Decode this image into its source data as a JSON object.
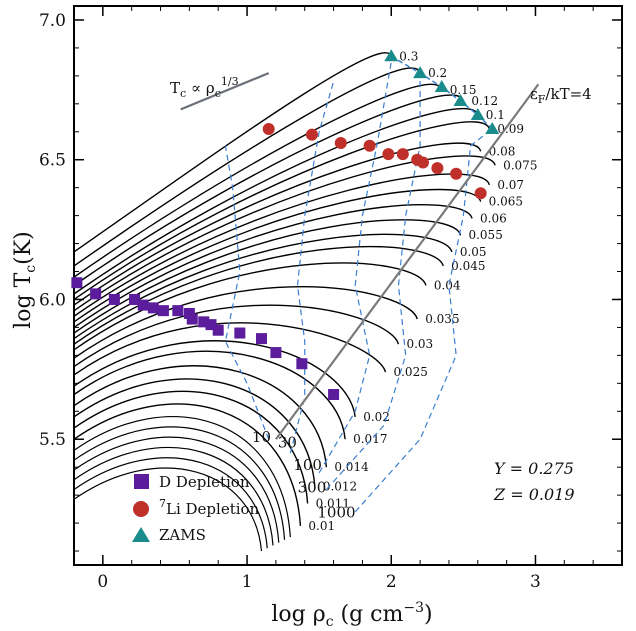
{
  "chart_data": {
    "type": "line",
    "xlabel_main": "log ρ",
    "xlabel_sub": "c",
    "xlabel_units": " (g cm",
    "xlabel_exp": "−3",
    "xlabel_close": ")",
    "ylabel_main": "log T",
    "ylabel_sub": "c",
    "ylabel_units": "(K)",
    "xlim": [
      -0.2,
      3.6
    ],
    "ylim": [
      5.05,
      7.05
    ],
    "xticks": [
      0,
      1,
      2,
      3
    ],
    "xtick_labels": [
      "0",
      "1",
      "2",
      "3"
    ],
    "yticks": [
      5.5,
      6.0,
      6.5,
      7.0
    ],
    "ytick_labels": [
      "5.5",
      "6.0",
      "6.5",
      "7.0"
    ],
    "tracks": [
      {
        "mass": "0.3",
        "rho_end": 2.0,
        "T_end": 6.87,
        "T_start": 6.17
      },
      {
        "mass": "0.2",
        "rho_end": 2.2,
        "T_end": 6.81,
        "T_start": 6.12
      },
      {
        "mass": "0.15",
        "rho_end": 2.35,
        "T_end": 6.75,
        "T_start": 6.08
      },
      {
        "mass": "0.12",
        "rho_end": 2.5,
        "T_end": 6.71,
        "T_start": 6.05
      },
      {
        "mass": "0.1",
        "rho_end": 2.6,
        "T_end": 6.66,
        "T_start": 6.02
      },
      {
        "mass": "0.09",
        "rho_end": 2.68,
        "T_end": 6.61,
        "T_start": 6.0
      },
      {
        "mass": "0.08",
        "rho_end": 2.62,
        "T_end": 6.53,
        "T_start": 5.98
      },
      {
        "mass": "0.075",
        "rho_end": 2.72,
        "T_end": 6.48,
        "T_start": 5.96
      },
      {
        "mass": "0.07",
        "rho_end": 2.68,
        "T_end": 6.41,
        "T_start": 5.94
      },
      {
        "mass": "0.065",
        "rho_end": 2.62,
        "T_end": 6.35,
        "T_start": 5.92
      },
      {
        "mass": "0.06",
        "rho_end": 2.56,
        "T_end": 6.29,
        "T_start": 5.9
      },
      {
        "mass": "0.055",
        "rho_end": 2.48,
        "T_end": 6.23,
        "T_start": 5.88
      },
      {
        "mass": "0.05",
        "rho_end": 2.42,
        "T_end": 6.17,
        "T_start": 5.86
      },
      {
        "mass": "0.045",
        "rho_end": 2.36,
        "T_end": 6.12,
        "T_start": 5.84
      },
      {
        "mass": "0.04",
        "rho_end": 2.24,
        "T_end": 6.05,
        "T_start": 5.82
      },
      {
        "mass": "0.035",
        "rho_end": 2.18,
        "T_end": 5.93,
        "T_start": 5.79
      },
      {
        "mass": "0.03",
        "rho_end": 2.05,
        "T_end": 5.84,
        "T_start": 5.76
      },
      {
        "mass": "0.025",
        "rho_end": 1.96,
        "T_end": 5.74,
        "T_start": 5.73
      },
      {
        "mass": "0.02",
        "rho_end": 1.75,
        "T_end": 5.58,
        "T_start": 5.69
      },
      {
        "mass": "0.017",
        "rho_end": 1.68,
        "T_end": 5.5,
        "T_start": 5.66
      },
      {
        "mass": "0.014",
        "rho_end": 1.55,
        "T_end": 5.4,
        "T_start": 5.62
      },
      {
        "mass": "0.012",
        "rho_end": 1.47,
        "T_end": 5.33,
        "T_start": 5.58
      },
      {
        "mass": "0.011",
        "rho_end": 1.42,
        "T_end": 5.27,
        "T_start": 5.54
      },
      {
        "mass": "0.01",
        "rho_end": 1.37,
        "T_end": 5.19,
        "T_start": 5.5
      }
    ],
    "extra_tracks_count": 6,
    "zams": {
      "name": "ZAMS",
      "x": [
        2.0,
        2.2,
        2.35,
        2.48,
        2.6,
        2.7
      ],
      "y": [
        6.87,
        6.81,
        6.76,
        6.71,
        6.66,
        6.61
      ],
      "color": "#1a8c8c"
    },
    "li_depletion": {
      "name": "Li Depletion",
      "name_sup": "7",
      "x": [
        1.15,
        1.45,
        1.65,
        1.85,
        1.98,
        2.08,
        2.18,
        2.22,
        2.32,
        2.45,
        2.62
      ],
      "y": [
        6.61,
        6.59,
        6.56,
        6.55,
        6.52,
        6.52,
        6.5,
        6.49,
        6.47,
        6.45,
        6.38
      ],
      "color": "#c0302b"
    },
    "d_depletion": {
      "name": "D Depletion",
      "x": [
        -0.18,
        -0.05,
        0.08,
        0.22,
        0.28,
        0.35,
        0.42,
        0.52,
        0.6,
        0.62,
        0.7,
        0.75,
        0.8,
        0.95,
        1.1,
        1.2,
        1.38,
        1.6
      ],
      "y": [
        6.06,
        6.02,
        6.0,
        6.0,
        5.98,
        5.97,
        5.96,
        5.96,
        5.95,
        5.93,
        5.92,
        5.91,
        5.89,
        5.88,
        5.86,
        5.81,
        5.77,
        5.66
      ],
      "color": "#5b1d9b"
    },
    "isochrones": [
      {
        "label": "10",
        "label_x": 1.1,
        "label_y": 5.49
      },
      {
        "label": "30",
        "label_x": 1.28,
        "label_y": 5.47
      },
      {
        "label": "100",
        "label_x": 1.42,
        "label_y": 5.39
      },
      {
        "label": "300",
        "label_x": 1.45,
        "label_y": 5.31
      },
      {
        "label": "1000",
        "label_x": 1.62,
        "label_y": 5.22
      }
    ],
    "isochrone_color": "#3b7fd0",
    "degeneracy_line": {
      "label": "ε",
      "label_sub": "F",
      "label_rest": "/kT=4",
      "x": [
        1.2,
        3.02
      ],
      "y": [
        5.5,
        6.77
      ]
    },
    "slope_line": {
      "label": "T",
      "label_sub": "c",
      "label_mid": " ∝ ρ",
      "label_sub2": "c",
      "label_sup": "1/3",
      "x": [
        0.54,
        1.15
      ],
      "y": [
        6.68,
        6.81
      ]
    },
    "composition": {
      "y_label": "Y = 0.275",
      "z_label": "Z = 0.019"
    }
  }
}
